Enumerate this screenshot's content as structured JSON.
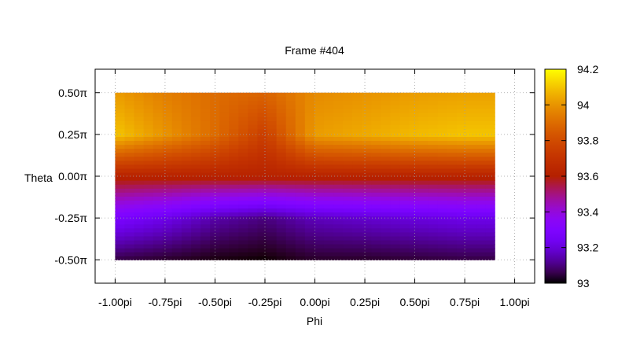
{
  "chart_data": {
    "type": "heatmap",
    "title": "Frame #404",
    "xlabel": "Phi",
    "ylabel": "Theta",
    "xlim": [
      -1.1,
      1.1
    ],
    "ylim": [
      -0.64,
      0.64
    ],
    "x_ticks": [
      {
        "value": -1.0,
        "label": "-1.00pi"
      },
      {
        "value": -0.75,
        "label": "-0.75pi"
      },
      {
        "value": -0.5,
        "label": "-0.50pi"
      },
      {
        "value": -0.25,
        "label": "-0.25pi"
      },
      {
        "value": 0.0,
        "label": "0.00pi"
      },
      {
        "value": 0.25,
        "label": "0.25pi"
      },
      {
        "value": 0.5,
        "label": "0.50pi"
      },
      {
        "value": 0.75,
        "label": "0.75pi"
      },
      {
        "value": 1.0,
        "label": "1.00pi"
      }
    ],
    "y_ticks": [
      {
        "value": 0.5,
        "label": "0.50π"
      },
      {
        "value": 0.25,
        "label": "0.25π"
      },
      {
        "value": 0.0,
        "label": "0.00π"
      },
      {
        "value": -0.25,
        "label": "-0.25π"
      },
      {
        "value": -0.5,
        "label": "-0.50π"
      }
    ],
    "grid": true,
    "colorbar": {
      "min": 93.0,
      "max": 94.2,
      "ticks": [
        {
          "value": 94.2,
          "label": "94.2"
        },
        {
          "value": 94.0,
          "label": "94"
        },
        {
          "value": 93.8,
          "label": "93.8"
        },
        {
          "value": 93.6,
          "label": "93.6"
        },
        {
          "value": 93.4,
          "label": "93.4"
        },
        {
          "value": 93.2,
          "label": "93.2"
        },
        {
          "value": 93.0,
          "label": "93"
        }
      ]
    },
    "x": [
      -1.0,
      -0.75,
      -0.5,
      -0.25,
      0.0,
      0.25,
      0.5,
      0.75,
      0.9
    ],
    "y": [
      -0.5,
      -0.25,
      0.0,
      0.25,
      0.5
    ],
    "z": [
      [
        93.05,
        93.03,
        93.01,
        93.0,
        93.03,
        93.03,
        93.04,
        93.05,
        93.05
      ],
      [
        93.28,
        93.22,
        93.14,
        93.1,
        93.16,
        93.18,
        93.2,
        93.22,
        93.22
      ],
      [
        93.62,
        93.62,
        93.62,
        93.62,
        93.62,
        93.62,
        93.62,
        93.62,
        93.62
      ],
      [
        94.1,
        94.0,
        93.9,
        93.75,
        94.02,
        94.05,
        94.08,
        94.1,
        94.1
      ],
      [
        94.02,
        93.95,
        93.9,
        93.88,
        93.98,
        94.0,
        94.02,
        94.03,
        94.03
      ]
    ]
  }
}
